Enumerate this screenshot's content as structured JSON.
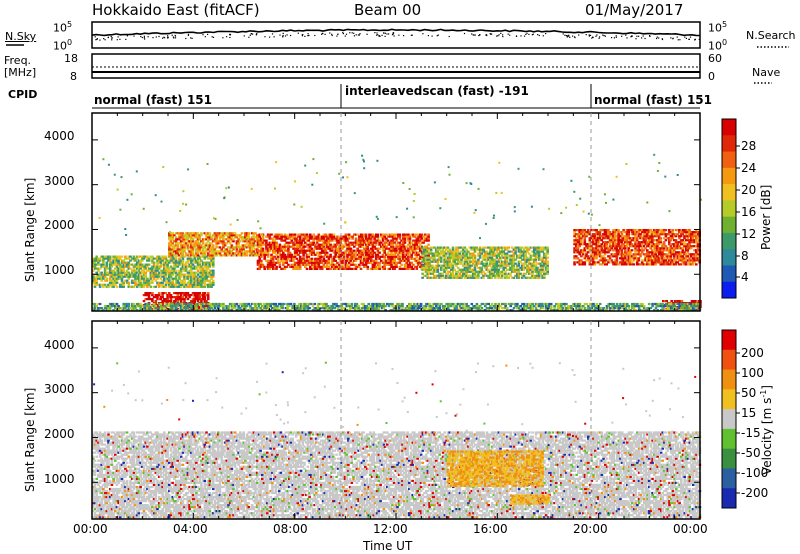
{
  "header": {
    "station": "Hokkaido East (fitACF)",
    "beam": "Beam 00",
    "date": "01/May/2017"
  },
  "nsky_panel": {
    "left_label": "N.Sky",
    "left_ticks": [
      "10^5",
      "10^0"
    ],
    "right_ticks": [
      "10^5",
      "10^0"
    ],
    "right_label": "N.Search"
  },
  "freq_panel": {
    "label_line1": "Freq.",
    "label_line2": "[MHz]",
    "left_ticks": [
      "18",
      "8"
    ],
    "right_ticks": [
      "60",
      "0"
    ],
    "right_label": "Nave"
  },
  "cpid_panel": {
    "label": "CPID",
    "segments": [
      {
        "name": "normal (fast) 151",
        "start_hour": 0,
        "end_hour": 10
      },
      {
        "name": "interleavedscan (fast) -191",
        "start_hour": 10,
        "end_hour": 20
      },
      {
        "name": "normal (fast) 151",
        "start_hour": 20,
        "end_hour": 24
      }
    ]
  },
  "chart_data": [
    {
      "type": "heatmap",
      "name": "power",
      "ylabel": "Slant Range [km]",
      "yticks": [
        "1000",
        "2000",
        "3000",
        "4000"
      ],
      "ylim": [
        180,
        4600
      ],
      "xlim": [
        0,
        24
      ],
      "colorbar": {
        "label": "Power [dB]",
        "ticks": [
          "4",
          "8",
          "12",
          "16",
          "20",
          "24",
          "28"
        ],
        "range": [
          0,
          30
        ],
        "colors": [
          "#0a1ef0",
          "#1e5ab4",
          "#2e8a9a",
          "#3c9a6a",
          "#6fb030",
          "#b5cc28",
          "#f0c020",
          "#f59a10",
          "#f06010",
          "#e02808",
          "#d80000"
        ]
      },
      "features": [
        {
          "t0": 0.0,
          "t1": 4.8,
          "r0": 700,
          "r1": 1400,
          "level": 0.45
        },
        {
          "t0": 3.0,
          "t1": 6.5,
          "r0": 1400,
          "r1": 1900,
          "level": 0.7
        },
        {
          "t0": 6.5,
          "t1": 13.3,
          "r0": 1100,
          "r1": 1900,
          "level": 0.85
        },
        {
          "t0": 13.0,
          "t1": 18.0,
          "r0": 900,
          "r1": 1600,
          "level": 0.45
        },
        {
          "t0": 19.0,
          "t1": 24.0,
          "r0": 1200,
          "r1": 2000,
          "level": 0.85
        },
        {
          "t0": 2.0,
          "t1": 4.6,
          "r0": 200,
          "r1": 600,
          "level": 1.0
        },
        {
          "t0": 22.5,
          "t1": 24.0,
          "r0": 200,
          "r1": 400,
          "level": 1.0
        },
        {
          "t0": 0.0,
          "t1": 24.0,
          "r0": 180,
          "r1": 320,
          "level": 0.35
        }
      ]
    },
    {
      "type": "heatmap",
      "name": "velocity",
      "ylabel": "Slant Range [km]",
      "yticks": [
        "1000",
        "2000",
        "3000",
        "4000"
      ],
      "ylim": [
        180,
        4600
      ],
      "xlim": [
        0,
        24
      ],
      "xticks": [
        "00:00",
        "04:00",
        "08:00",
        "12:00",
        "16:00",
        "20:00",
        "00:00"
      ],
      "xlabel": "Time UT",
      "colorbar": {
        "label": "Velocity [m s^-1]",
        "ticks": [
          "200",
          "100",
          "50",
          "15",
          "-15",
          "-50",
          "-100",
          "-200"
        ],
        "colors": [
          "#1a2ab0",
          "#2a60a0",
          "#3a9040",
          "#60c030",
          "#c8c8c8",
          "#f0c020",
          "#f09010",
          "#f05010",
          "#e00000"
        ]
      },
      "features": [
        {
          "t0": 0.0,
          "t1": 24.0,
          "r0": 200,
          "r1": 2100,
          "level": 0.5
        },
        {
          "t0": 14.0,
          "t1": 17.8,
          "r0": 900,
          "r1": 1700,
          "level": 0.62
        },
        {
          "t0": 16.5,
          "t1": 18.0,
          "r0": 500,
          "r1": 700,
          "level": 0.62
        }
      ]
    }
  ]
}
